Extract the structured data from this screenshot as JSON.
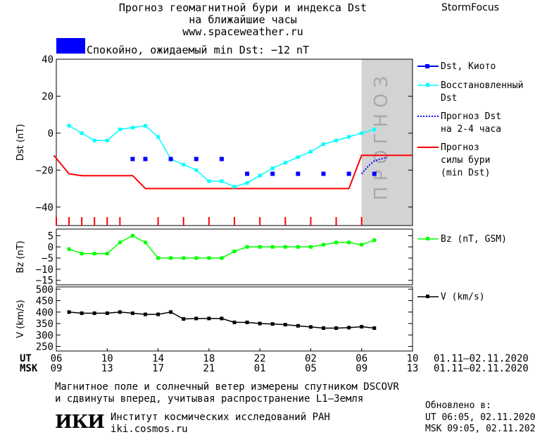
{
  "header": {
    "title_line1": "Прогноз геомагнитной бури и индекса Dst",
    "title_line2": "на ближайшие часы",
    "site": "www.spaceweather.ru",
    "brand": "StormFocus"
  },
  "status": {
    "text": "Спокойно, ожидаемый min Dst: −12 nT",
    "box_color": "#0000ff"
  },
  "legend": {
    "dst_kyoto": "Dst, Киото",
    "dst_restored_1": "Восстановленный",
    "dst_restored_2": "Dst",
    "dst_forecast_1": "Прогноз Dst",
    "dst_forecast_2": "на 2-4 часа",
    "storm_forecast_1": "Прогноз",
    "storm_forecast_2": "силы бури",
    "storm_forecast_3": "(min Dst)",
    "bz": "Bz (nT, GSM)",
    "v": "V (km/s)"
  },
  "forecast_label": "ПРОГНОЗ",
  "time_axis": {
    "ut_label": "UT",
    "msk_label": "MSK",
    "ut_ticks": [
      "06",
      "10",
      "14",
      "18",
      "22",
      "02",
      "06",
      "10"
    ],
    "msk_ticks": [
      "09",
      "13",
      "17",
      "21",
      "01",
      "05",
      "09",
      "13"
    ],
    "ut_range": "01.11–02.11.2020",
    "msk_range": "01.11–02.11.2020"
  },
  "footer": {
    "note_line1": "Магнитное поле и солнечный ветер измерены спутником DSCOVR",
    "note_line2": "и сдвинуты вперед, учитывая распространение L1–Земля",
    "logo": "ИКИ",
    "institute": "Институт космических исследований РАН",
    "institute_site": "iki.cosmos.ru",
    "updated_label": "Обновлено в:",
    "updated_ut": "UT   06:05, 02.11.2020",
    "updated_msk": "MSK 09:05, 02.11.2020"
  },
  "chart_data": [
    {
      "type": "line",
      "panel": "dst",
      "ylabel": "Dst (nT)",
      "xlim": [
        0,
        28
      ],
      "ylim": [
        -50,
        40
      ],
      "yticks": [
        40,
        20,
        0,
        -20,
        -40
      ],
      "forecast_region": [
        24,
        28
      ],
      "colors": {
        "kyoto": "#0000ff",
        "restored": "#00ffff",
        "forecast_dst": "#0000ff",
        "storm": "#ff0000"
      },
      "series": [
        {
          "name": "Dst, Киото",
          "style": "points",
          "x": [
            6,
            7,
            9,
            11,
            13,
            15,
            17,
            19,
            21,
            23,
            25
          ],
          "y": [
            -14,
            -14,
            -14,
            -14,
            -14,
            -22,
            -22,
            -22,
            -22,
            -22,
            -22
          ]
        },
        {
          "name": "Восстановленный Dst",
          "style": "line-markers",
          "x": [
            1,
            2,
            3,
            4,
            5,
            6,
            7,
            8,
            9,
            10,
            11,
            12,
            13,
            14,
            15,
            16,
            17,
            18,
            19,
            20,
            21,
            22,
            23,
            24,
            25
          ],
          "y": [
            4,
            0,
            -4,
            -4,
            2,
            3,
            4,
            -2,
            -14,
            -17,
            -20,
            -26,
            -26,
            -29,
            -27,
            -23,
            -19,
            -16,
            -13,
            -10,
            -6,
            -4,
            -2,
            0,
            2
          ]
        },
        {
          "name": "Прогноз Dst на 2-4 часа",
          "style": "dotted",
          "x": [
            24,
            24.5,
            25,
            26
          ],
          "y": [
            -22,
            -18,
            -15,
            -13
          ]
        },
        {
          "name": "Прогноз силы бури (min Dst)",
          "style": "step",
          "x": [
            -0.2,
            1,
            2,
            6,
            7,
            23,
            24,
            28
          ],
          "y": [
            -12,
            -22,
            -23,
            -23,
            -30,
            -30,
            -12,
            -12
          ]
        }
      ],
      "tick_marks": [
        0,
        1,
        2,
        3,
        4,
        5,
        8,
        10,
        12,
        14,
        16,
        18,
        20,
        22,
        24
      ]
    },
    {
      "type": "line",
      "panel": "bz",
      "ylabel": "Bz (nT)",
      "xlim": [
        0,
        28
      ],
      "ylim": [
        -17,
        8
      ],
      "yticks": [
        5,
        0,
        -5,
        -10,
        -15
      ],
      "color": "#00ff00",
      "series": [
        {
          "name": "Bz (nT, GSM)",
          "x": [
            1,
            2,
            3,
            4,
            5,
            6,
            7,
            8,
            9,
            10,
            11,
            12,
            13,
            14,
            15,
            16,
            17,
            18,
            19,
            20,
            21,
            22,
            23,
            24,
            25
          ],
          "y": [
            -1,
            -3,
            -3,
            -3,
            2,
            5,
            2,
            -5,
            -5,
            -5,
            -5,
            -5,
            -5,
            -2,
            0,
            0,
            0,
            0,
            0,
            0,
            1,
            2,
            2,
            1,
            3
          ]
        }
      ]
    },
    {
      "type": "line",
      "panel": "v",
      "ylabel": "V (km/s)",
      "xlim": [
        0,
        28
      ],
      "ylim": [
        230,
        510
      ],
      "yticks": [
        500,
        450,
        400,
        350,
        300,
        250
      ],
      "color": "#000000",
      "series": [
        {
          "name": "V (km/s)",
          "x": [
            1,
            2,
            3,
            4,
            5,
            6,
            7,
            8,
            9,
            10,
            11,
            12,
            13,
            14,
            15,
            16,
            17,
            18,
            19,
            20,
            21,
            22,
            23,
            24,
            25
          ],
          "y": [
            400,
            395,
            395,
            395,
            400,
            395,
            390,
            390,
            400,
            370,
            372,
            372,
            372,
            355,
            355,
            350,
            348,
            345,
            340,
            335,
            330,
            330,
            332,
            336,
            330
          ]
        }
      ]
    }
  ]
}
